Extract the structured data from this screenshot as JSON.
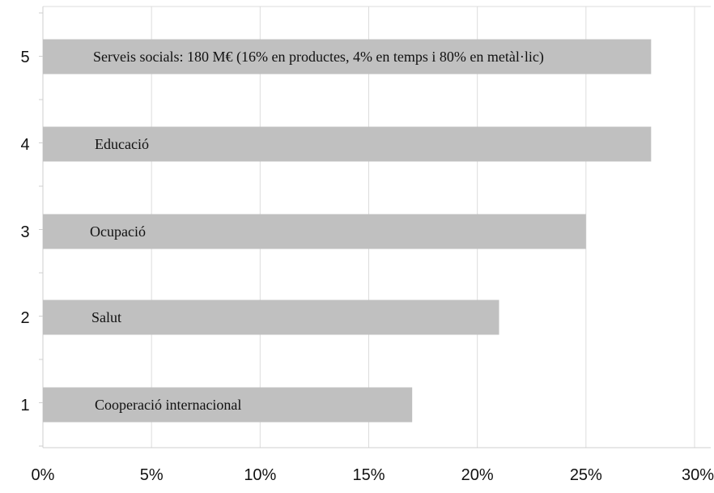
{
  "chart_data": {
    "type": "bar",
    "orientation": "horizontal",
    "categories": [
      "1",
      "2",
      "3",
      "4",
      "5"
    ],
    "values": [
      17,
      21,
      25,
      28,
      28
    ],
    "value_unit": "%",
    "bar_labels": [
      "Cooperació internacional",
      "Salut",
      "Ocupació",
      "Educació",
      "Serveis socials: 180 M€ (16% en productes, 4% en temps i 80% en metàl·lic)"
    ],
    "x_ticks": [
      "0%",
      "5%",
      "10%",
      "15%",
      "20%",
      "25%",
      "30%"
    ],
    "xlim": [
      0,
      30
    ],
    "title": "",
    "xlabel": "",
    "ylabel": "",
    "grid": "vertical",
    "legend": "none",
    "colors": {
      "bar": "#c0c0c0",
      "grid": "#dcdcdc",
      "text": "#111111",
      "background": "#ffffff"
    }
  }
}
